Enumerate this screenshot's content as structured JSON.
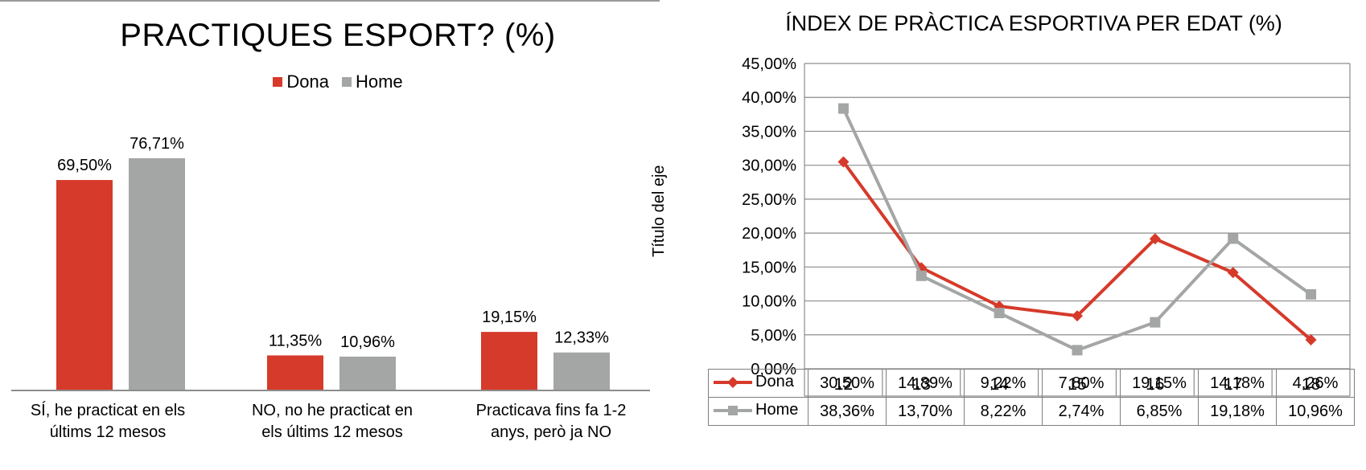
{
  "colors": {
    "dona": "#d63a2a",
    "home": "#a4a6a5",
    "axis": "#8c8c8c",
    "grid": "#8c8c8c"
  },
  "chart_data": [
    {
      "type": "bar",
      "title": "PRACTIQUES ESPORT? (%)",
      "legend_position": "top-center",
      "categories": [
        [
          "SÍ, he practicat en els",
          "últims 12 mesos"
        ],
        [
          "NO, no he practicat en",
          "els últims 12 mesos"
        ],
        [
          "Practicava fins fa 1-2",
          "anys, però ja NO"
        ]
      ],
      "series": [
        {
          "name": "Dona",
          "values": [
            69.5,
            11.35,
            19.15
          ],
          "labels": [
            "69,50%",
            "11,35%",
            "19,15%"
          ]
        },
        {
          "name": "Home",
          "values": [
            76.71,
            10.96,
            12.33
          ],
          "labels": [
            "76,71%",
            "10,96%",
            "12,33%"
          ]
        }
      ],
      "ylim": [
        0,
        76.71
      ],
      "grid": false
    },
    {
      "type": "line",
      "title": "ÍNDEX DE PRÀCTICA ESPORTIVA PER EDAT (%)",
      "ylabel": "Título del eje",
      "x": [
        "12",
        "13",
        "14",
        "15",
        "16",
        "17",
        "18"
      ],
      "ylim": [
        0,
        45
      ],
      "yticks": [
        "0,00%",
        "5,00%",
        "10,00%",
        "15,00%",
        "20,00%",
        "25,00%",
        "30,00%",
        "35,00%",
        "40,00%",
        "45,00%"
      ],
      "grid": true,
      "legend_position": "data-table",
      "series": [
        {
          "name": "Dona",
          "marker": "diamond",
          "values": [
            30.5,
            14.89,
            9.22,
            7.8,
            19.15,
            14.18,
            4.26
          ],
          "labels": [
            "30,50%",
            "14,89%",
            "9,22%",
            "7,80%",
            "19,15%",
            "14,18%",
            "4,26%"
          ]
        },
        {
          "name": "Home",
          "marker": "square",
          "values": [
            38.36,
            13.7,
            8.22,
            2.74,
            6.85,
            19.18,
            10.96
          ],
          "labels": [
            "38,36%",
            "13,70%",
            "8,22%",
            "2,74%",
            "6,85%",
            "19,18%",
            "10,96%"
          ]
        }
      ]
    }
  ]
}
